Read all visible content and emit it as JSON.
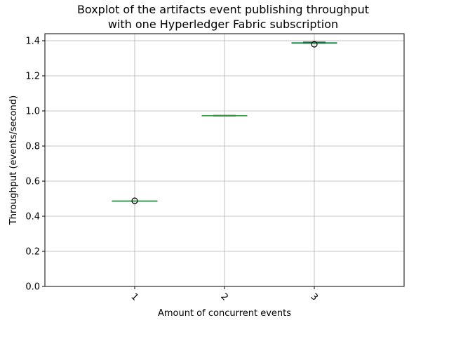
{
  "chart_data": {
    "type": "boxplot",
    "title_lines": [
      "Boxplot of the artifacts event publishing throughput",
      "with one Hyperledger Fabric subscription"
    ],
    "xlabel": "Amount of concurrent events",
    "ylabel": "Throughput (events/second)",
    "categories": [
      "1",
      "2",
      "3"
    ],
    "ylim": [
      0,
      1.44
    ],
    "yticks": [
      0.0,
      0.2,
      0.4,
      0.6,
      0.8,
      1.0,
      1.2,
      1.4
    ],
    "ytick_labels": [
      "0.0",
      "0.2",
      "0.4",
      "0.6",
      "0.8",
      "1.0",
      "1.2",
      "1.4"
    ],
    "grid": true,
    "boxes": [
      {
        "category": "1",
        "whisker_low": 0.486,
        "q1": 0.486,
        "median": 0.487,
        "q3": 0.487,
        "whisker_high": 0.488,
        "outliers": [
          0.488
        ]
      },
      {
        "category": "2",
        "whisker_low": 0.971,
        "q1": 0.972,
        "median": 0.973,
        "q3": 0.974,
        "whisker_high": 0.975,
        "outliers": []
      },
      {
        "category": "3",
        "whisker_low": 1.384,
        "q1": 1.385,
        "median": 1.386,
        "q3": 1.389,
        "whisker_high": 1.392,
        "outliers": [
          1.38
        ]
      }
    ],
    "colors": {
      "box": "#1f77b4",
      "median": "#2ca02c",
      "grid": "#b0b0b0",
      "axis": "#000000"
    }
  }
}
